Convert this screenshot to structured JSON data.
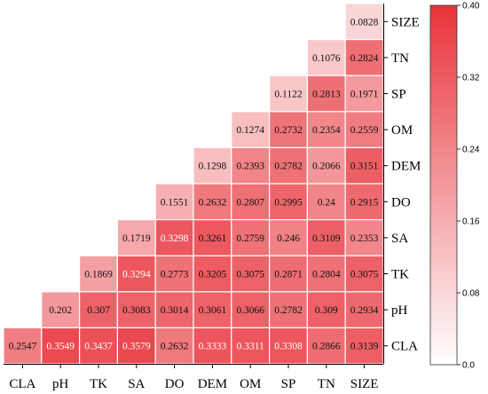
{
  "chart_data": {
    "type": "heatmap",
    "title": "",
    "xlabel": "",
    "ylabel": "",
    "x_categories": [
      "CLA",
      "pH",
      "TK",
      "SA",
      "DO",
      "DEM",
      "OM",
      "SP",
      "TN",
      "SIZE"
    ],
    "y_categories": [
      "SIZE",
      "TN",
      "SP",
      "OM",
      "DEM",
      "DO",
      "SA",
      "TK",
      "pH",
      "CLA"
    ],
    "cells": [
      [
        "",
        "",
        "",
        "",
        "",
        "",
        "",
        "",
        "",
        "0.0828"
      ],
      [
        "",
        "",
        "",
        "",
        "",
        "",
        "",
        "",
        "0.1076",
        "0.2824"
      ],
      [
        "",
        "",
        "",
        "",
        "",
        "",
        "",
        "0.1122",
        "0.2813",
        "0.1971"
      ],
      [
        "",
        "",
        "",
        "",
        "",
        "",
        "0.1274",
        "0.2732",
        "0.2354",
        "0.2559"
      ],
      [
        "",
        "",
        "",
        "",
        "",
        "0.1298",
        "0.2393",
        "0.2782",
        "0.2066",
        "0.3151"
      ],
      [
        "",
        "",
        "",
        "",
        "0.1551",
        "0.2632",
        "0.2807",
        "0.2995",
        "0.24",
        "0.2915"
      ],
      [
        "",
        "",
        "",
        "0.1719",
        "0.3298",
        "0.3261",
        "0.2759",
        "0.246",
        "0.3109",
        "0.2353"
      ],
      [
        "",
        "",
        "0.1869",
        "0.3294",
        "0.2773",
        "0.3205",
        "0.3075",
        "0.2871",
        "0.2804",
        "0.3075"
      ],
      [
        "",
        "0.202",
        "0.307",
        "0.3083",
        "0.3014",
        "0.3061",
        "0.3066",
        "0.2782",
        "0.309",
        "0.2934"
      ],
      [
        "0.2547",
        "0.3549",
        "0.3437",
        "0.3579",
        "0.2632",
        "0.3333",
        "0.3311",
        "0.3308",
        "0.2866",
        "0.3139"
      ]
    ],
    "colorbar": {
      "min": 0.0,
      "max": 0.4,
      "ticks": [
        "0.0",
        "0.08",
        "0.16",
        "0.24",
        "0.32",
        "0.40"
      ],
      "color_low": "#ffffff",
      "color_high": "#e8333a"
    },
    "grid": false,
    "legend": "right"
  }
}
